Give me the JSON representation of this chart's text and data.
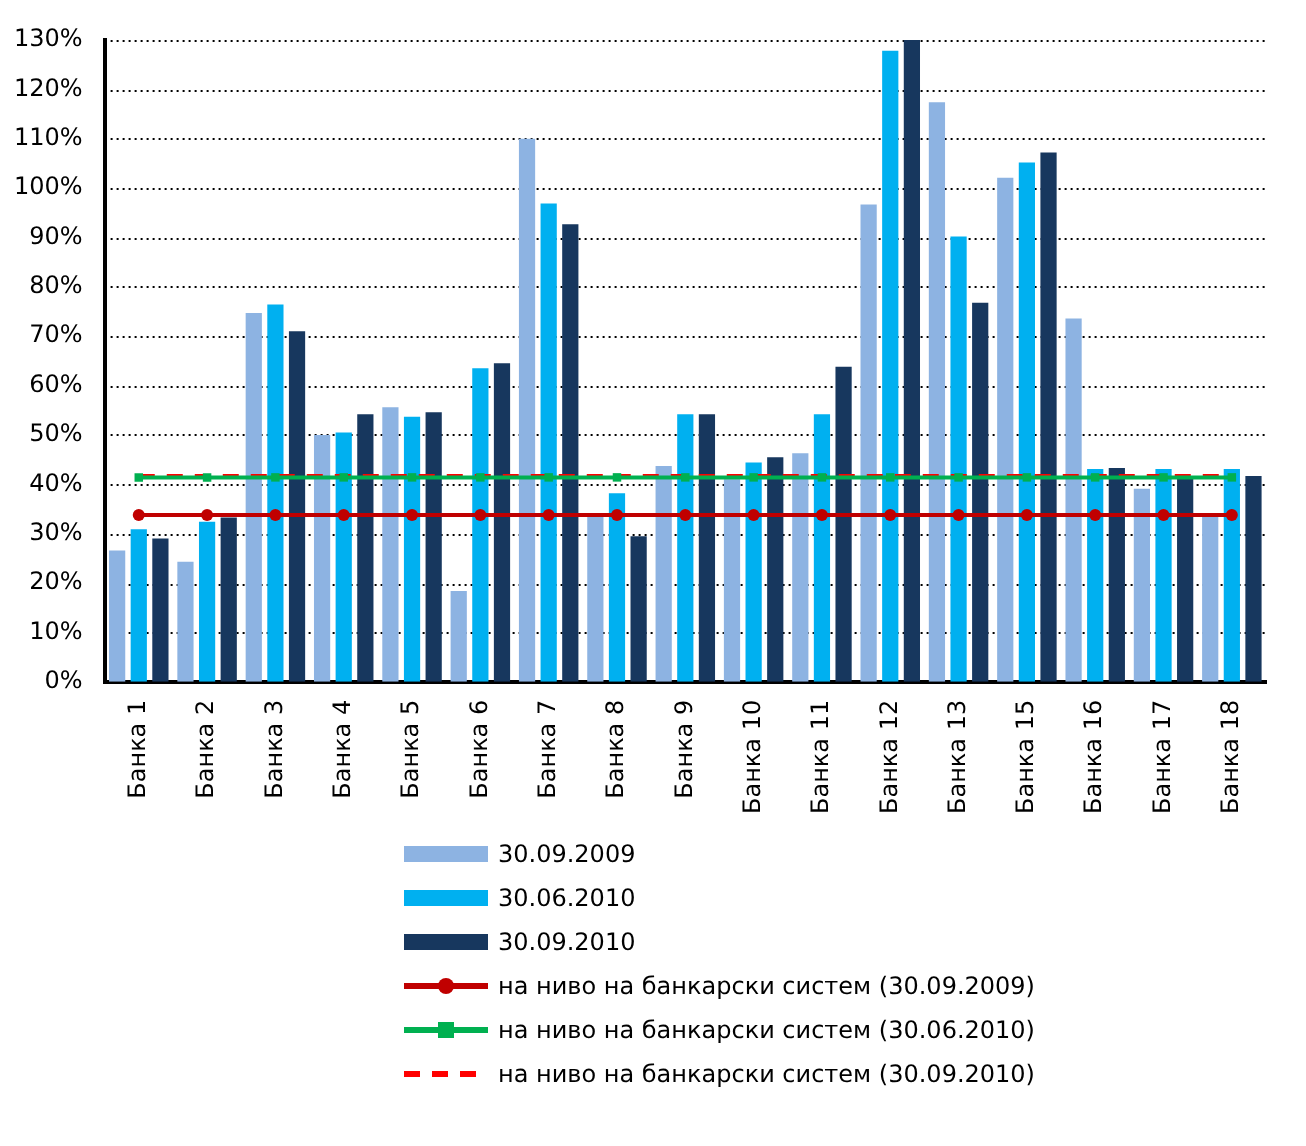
{
  "chart_data": {
    "type": "bar",
    "categories": [
      "Банка 1",
      "Банка 2",
      "Банка 3",
      "Банка 4",
      "Банка 5",
      "Банка 6",
      "Банка 7",
      "Банка 8",
      "Банка 9",
      "Банка 10",
      "Банка 11",
      "Банка 12",
      "Банка 13",
      "Банка 15",
      "Банка 16",
      "Банка 17",
      "Банка 18"
    ],
    "series": [
      {
        "name": "30.09.2009",
        "color": "#8db3e2",
        "values": [
          26.6,
          24.3,
          74.7,
          50,
          55.6,
          18.4,
          110,
          34,
          43.7,
          41,
          46.3,
          96.7,
          117.4,
          102.1,
          73.6,
          39.1,
          34
        ]
      },
      {
        "name": "30.06.2010",
        "color": "#00b0f0",
        "values": [
          30.9,
          32.4,
          76.4,
          50.5,
          53.7,
          63.5,
          96.9,
          38.2,
          54.2,
          44.4,
          54.2,
          127.8,
          90.2,
          105.2,
          43.1,
          43.1,
          43.1
        ]
      },
      {
        "name": "30.09.2010",
        "color": "#17375e",
        "values": [
          29,
          33.3,
          71,
          54.2,
          54.6,
          64.5,
          92.7,
          29.5,
          54.2,
          45.5,
          63.8,
          130,
          76.8,
          107.2,
          43.3,
          41.1,
          41.7
        ]
      },
      {
        "name": "на ниво на банкарски систем (30.09.2009)",
        "type": "line",
        "color": "#c00000",
        "marker": "circle",
        "line_style": "solid",
        "values": [
          33.8,
          33.8,
          33.8,
          33.8,
          33.8,
          33.8,
          33.8,
          33.8,
          33.8,
          33.8,
          33.8,
          33.8,
          33.8,
          33.8,
          33.8,
          33.8,
          33.8
        ]
      },
      {
        "name": "на ниво на банкарски систем (30.06.2010)",
        "type": "line",
        "color": "#00b050",
        "marker": "square",
        "line_style": "solid",
        "values": [
          41.4,
          41.4,
          41.4,
          41.4,
          41.4,
          41.4,
          41.4,
          41.4,
          41.4,
          41.4,
          41.4,
          41.4,
          41.4,
          41.4,
          41.4,
          41.4,
          41.4
        ]
      },
      {
        "name": "на ниво на банкарски систем (30.09.2010)",
        "type": "line",
        "color": "#ff0000",
        "marker": "none",
        "line_style": "dashed",
        "values": [
          41.7,
          41.7,
          41.7,
          41.7,
          41.7,
          41.7,
          41.7,
          41.7,
          41.7,
          41.7,
          41.7,
          41.7,
          41.7,
          41.7,
          41.7,
          41.7,
          41.7
        ]
      }
    ],
    "ylim": [
      0,
      130
    ],
    "yticks": [
      {
        "value": 0,
        "label": "0%"
      },
      {
        "value": 10,
        "label": "10%"
      },
      {
        "value": 20,
        "label": "20%"
      },
      {
        "value": 30,
        "label": "30%"
      },
      {
        "value": 40,
        "label": "40%"
      },
      {
        "value": 50,
        "label": "50%"
      },
      {
        "value": 60,
        "label": "60%"
      },
      {
        "value": 70,
        "label": "70%"
      },
      {
        "value": 80,
        "label": "80%"
      },
      {
        "value": 90,
        "label": "90%"
      },
      {
        "value": 100,
        "label": "100%"
      },
      {
        "value": 110,
        "label": "110%"
      },
      {
        "value": 120,
        "label": "120%"
      },
      {
        "value": 130,
        "label": "130%"
      }
    ],
    "grid": "y",
    "legend": "bottom"
  }
}
